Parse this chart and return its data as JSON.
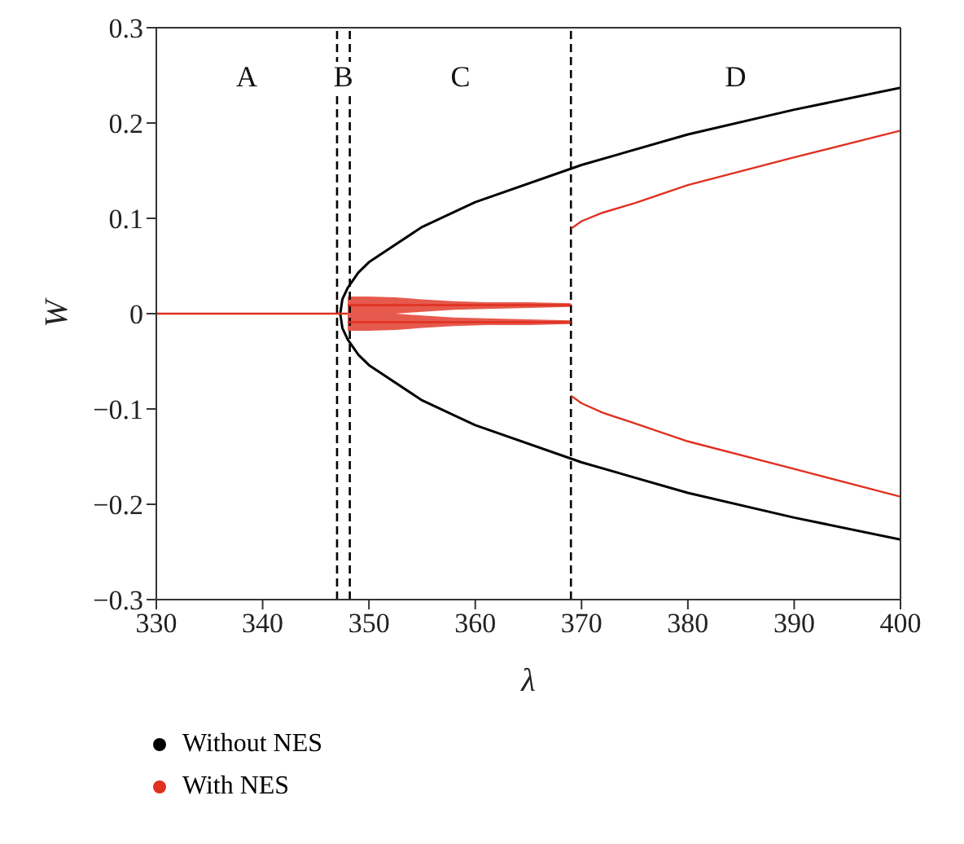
{
  "chart_data": {
    "type": "line",
    "xlabel": "λ",
    "ylabel": "W",
    "xlim": [
      330,
      400
    ],
    "ylim": [
      -0.3,
      0.3
    ],
    "xticks": [
      330,
      340,
      350,
      360,
      370,
      380,
      390,
      400
    ],
    "yticks": [
      -0.3,
      -0.2,
      -0.1,
      0,
      0.1,
      0.2,
      0.3
    ],
    "grid": false,
    "legend": "bottom left",
    "marker": "none",
    "line_style": "solid",
    "series": [
      {
        "name": "Without NES",
        "color": "#000000",
        "x": [
          400,
          390,
          380,
          370,
          360,
          355,
          350,
          349,
          348,
          347.5,
          347.3,
          347.5,
          348,
          349,
          350,
          355,
          360,
          370,
          380,
          390,
          400
        ],
        "values": [
          0.237,
          0.214,
          0.188,
          0.156,
          0.117,
          0.091,
          0.054,
          0.043,
          0.027,
          0.015,
          0,
          -0.015,
          -0.027,
          -0.043,
          -0.054,
          -0.091,
          -0.117,
          -0.156,
          -0.188,
          -0.214,
          -0.237
        ]
      },
      {
        "name": "With NES",
        "color": "#e03020",
        "x": [
          330,
          340,
          348
        ],
        "values": [
          0,
          0,
          0
        ]
      },
      {
        "color": "#e03020",
        "x": [
          348,
          350,
          352.5,
          355,
          358,
          361,
          365,
          369
        ],
        "values": [
          0.009,
          0.009,
          0.009,
          0.009,
          0.009,
          0.009,
          0.009,
          0.009
        ],
        "lower": [
          0,
          0,
          0,
          0.002,
          0.004,
          0.005,
          0.006,
          0.007
        ],
        "upper": [
          0.018,
          0.018,
          0.017,
          0.015,
          0.013,
          0.012,
          0.012,
          0.011
        ]
      },
      {
        "color": "#e03020",
        "x": [
          348,
          350,
          352.5,
          355,
          358,
          361,
          365,
          369
        ],
        "values": [
          -0.009,
          -0.009,
          -0.009,
          -0.009,
          -0.009,
          -0.009,
          -0.009,
          -0.009
        ],
        "lower": [
          -0.018,
          -0.018,
          -0.017,
          -0.015,
          -0.013,
          -0.012,
          -0.012,
          -0.011
        ],
        "upper": [
          0,
          0,
          0,
          -0.002,
          -0.004,
          -0.005,
          -0.006,
          -0.007
        ]
      },
      {
        "color": "#e03020",
        "x": [
          369,
          370,
          372,
          375,
          380,
          390,
          400
        ],
        "values": [
          0.089,
          0.097,
          0.106,
          0.116,
          0.135,
          0.164,
          0.192
        ]
      },
      {
        "color": "#e03020",
        "x": [
          369,
          370,
          372,
          375,
          380,
          390,
          400
        ],
        "values": [
          -0.086,
          -0.094,
          -0.104,
          -0.115,
          -0.134,
          -0.163,
          -0.192
        ]
      }
    ],
    "ref_lines": [
      {
        "axis": "x",
        "value": 347,
        "line_style": "dashed",
        "color": "#000000"
      },
      {
        "axis": "x",
        "value": 348.2,
        "line_style": "dashed",
        "color": "#000000"
      },
      {
        "axis": "x",
        "value": 369,
        "line_style": "dashed",
        "color": "#000000"
      }
    ],
    "annotations": [
      "A",
      "B",
      "C",
      "D"
    ]
  }
}
